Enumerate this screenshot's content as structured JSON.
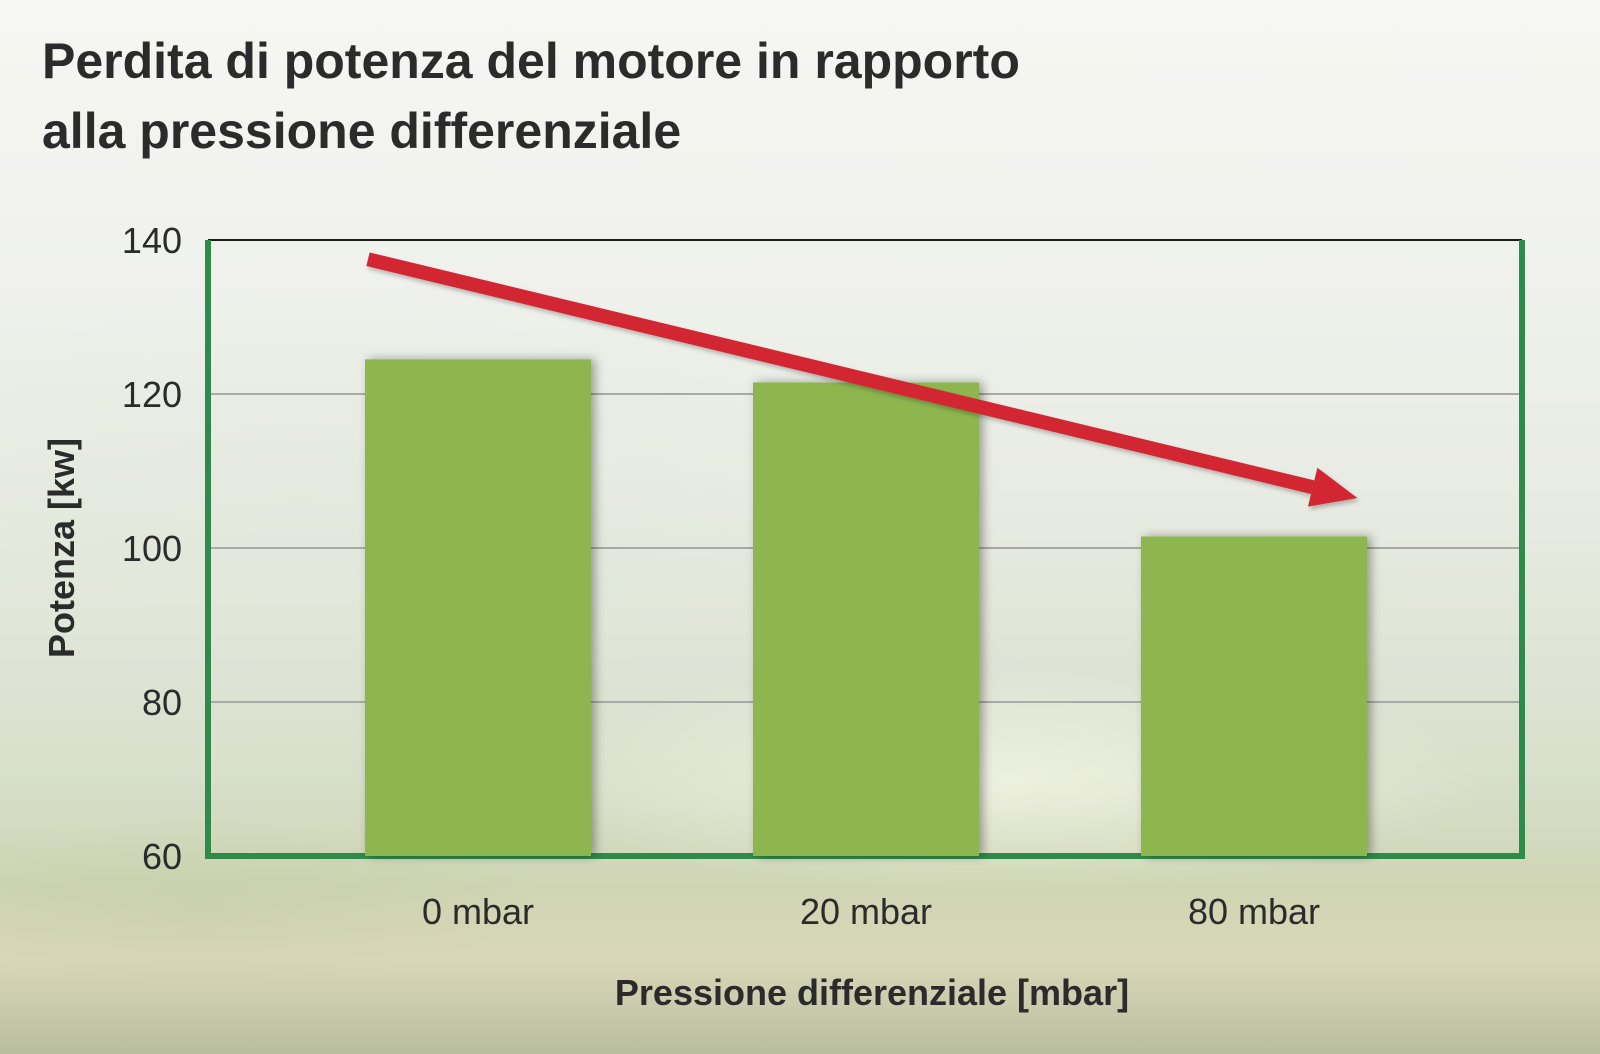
{
  "chart_data": {
    "type": "bar",
    "title_lines": [
      "Perdita di potenza del motore in rapporto",
      "alla pressione differenziale"
    ],
    "categories": [
      "0 mbar",
      "20 mbar",
      "80 mbar"
    ],
    "values": [
      124.5,
      121.5,
      101.5
    ],
    "xlabel": "Pressione differenziale [mbar]",
    "ylabel": "Potenza [kw]",
    "ylim": [
      60,
      140
    ],
    "yticks": [
      60,
      80,
      100,
      120,
      140
    ],
    "ytick_labels": [
      "60",
      "80",
      "100",
      "120",
      "140"
    ],
    "grid": true,
    "legend": "none",
    "trend_arrow": {
      "from": [
        0,
        137.5
      ],
      "to": [
        2.55,
        106.5
      ]
    },
    "colors": {
      "bar": "#8db650",
      "frame": "#2e8b4a",
      "grid": "#a8aaa6",
      "arrow": "#d22630",
      "text": "#2b2b2b"
    }
  }
}
